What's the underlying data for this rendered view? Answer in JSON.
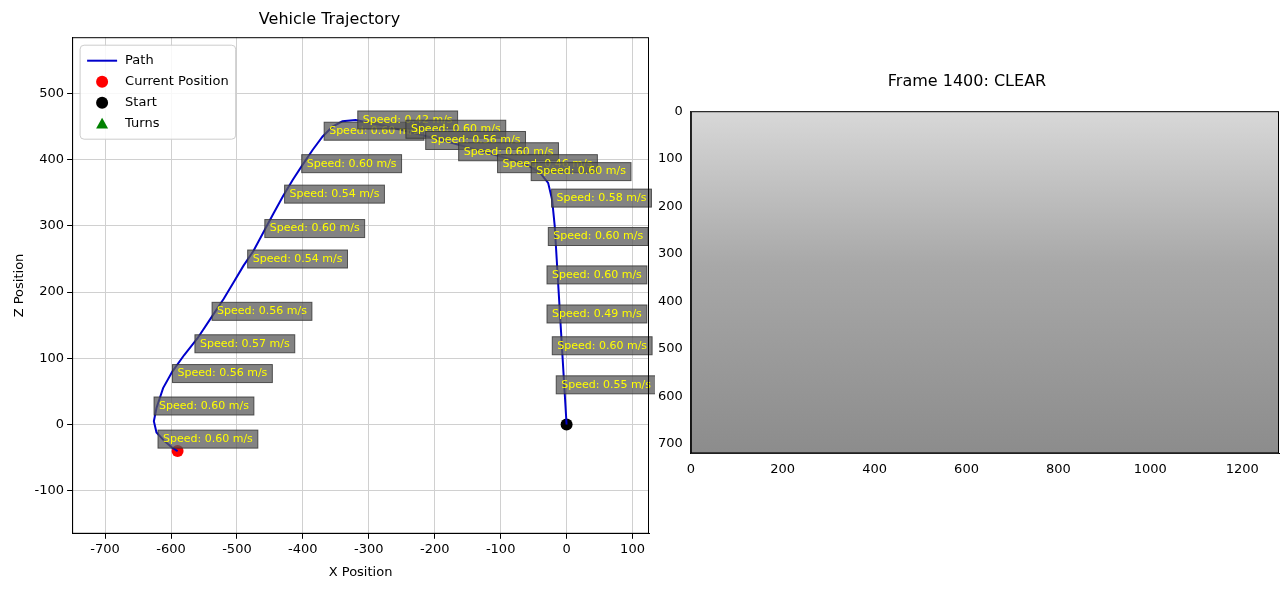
{
  "chart_data": [
    {
      "type": "line",
      "title": "Vehicle Trajectory",
      "x_label": "X Position",
      "y_label": "Z Position",
      "xlim": [
        -750,
        125
      ],
      "ylim": [
        -165,
        585
      ],
      "xticks": [
        -700,
        -600,
        -500,
        -400,
        -300,
        -200,
        -100,
        0,
        100
      ],
      "yticks": [
        -100,
        0,
        100,
        200,
        300,
        400,
        500
      ],
      "grid": true,
      "legend": "upper left",
      "series": [
        {
          "name": "Path",
          "color": "#0000cc",
          "type": "line",
          "line_style": "solid",
          "x": [
            0,
            -3,
            -6,
            -9,
            -12,
            -15,
            -18,
            -22,
            -28,
            -40,
            -60,
            -90,
            -130,
            -180,
            -230,
            -280,
            -320,
            -340,
            -355,
            -370,
            -385,
            -400,
            -415,
            -430,
            -445,
            -460,
            -475,
            -490,
            -505,
            -520,
            -540,
            -560,
            -580,
            -598,
            -612,
            -622,
            -626,
            -622,
            -610,
            -598,
            -590
          ],
          "y": [
            0,
            50,
            100,
            150,
            200,
            250,
            300,
            340,
            365,
            380,
            392,
            402,
            413,
            427,
            440,
            452,
            460,
            458,
            450,
            435,
            415,
            393,
            370,
            345,
            318,
            290,
            262,
            240,
            215,
            190,
            160,
            130,
            105,
            80,
            55,
            25,
            5,
            -12,
            -25,
            -35,
            -40
          ]
        },
        {
          "name": "Current Position",
          "color": "#ff0000",
          "type": "scatter",
          "marker": "o",
          "x": [
            -590
          ],
          "y": [
            -40
          ]
        },
        {
          "name": "Start",
          "color": "#000000",
          "type": "scatter",
          "marker": "o",
          "x": [
            0
          ],
          "y": [
            0
          ]
        },
        {
          "name": "Turns",
          "color": "#008000",
          "type": "scatter",
          "marker": "^",
          "x": [],
          "y": []
        }
      ],
      "annotations": [
        {
          "x": -544,
          "y": -22,
          "text": "Speed: 0.60 m/s"
        },
        {
          "x": -550,
          "y": 28,
          "text": "Speed: 0.60 m/s"
        },
        {
          "x": -522,
          "y": 77,
          "text": "Speed: 0.56 m/s"
        },
        {
          "x": -488,
          "y": 122,
          "text": "Speed: 0.57 m/s"
        },
        {
          "x": -462,
          "y": 171,
          "text": "Speed: 0.56 m/s"
        },
        {
          "x": -408,
          "y": 250,
          "text": "Speed: 0.54 m/s"
        },
        {
          "x": -382,
          "y": 296,
          "text": "Speed: 0.60 m/s"
        },
        {
          "x": -352,
          "y": 348,
          "text": "Speed: 0.54 m/s"
        },
        {
          "x": -326,
          "y": 394,
          "text": "Speed: 0.60 m/s"
        },
        {
          "x": -292,
          "y": 443,
          "text": "Speed: 0.60 m/s"
        },
        {
          "x": -241,
          "y": 460,
          "text": "Speed: 0.42 m/s"
        },
        {
          "x": -168,
          "y": 446,
          "text": "Speed: 0.60 m/s"
        },
        {
          "x": -138,
          "y": 429,
          "text": "Speed: 0.56 m/s"
        },
        {
          "x": -88,
          "y": 412,
          "text": "Speed: 0.60 m/s"
        },
        {
          "x": -29,
          "y": 394,
          "text": "Speed: 0.46 m/s"
        },
        {
          "x": 22,
          "y": 382,
          "text": "Speed: 0.60 m/s"
        },
        {
          "x": 53,
          "y": 342,
          "text": "Speed: 0.58 m/s"
        },
        {
          "x": 48,
          "y": 284,
          "text": "Speed: 0.60 m/s"
        },
        {
          "x": 46,
          "y": 226,
          "text": "Speed: 0.60 m/s"
        },
        {
          "x": 46,
          "y": 167,
          "text": "Speed: 0.49 m/s"
        },
        {
          "x": 54,
          "y": 119,
          "text": "Speed: 0.60 m/s"
        },
        {
          "x": 60,
          "y": 60,
          "text": "Speed: 0.55 m/s"
        }
      ]
    },
    {
      "type": "image",
      "title": "Frame 1400: CLEAR",
      "xlim": [
        0,
        1280
      ],
      "ylim": [
        720,
        0
      ],
      "xticks": [
        0,
        200,
        400,
        600,
        800,
        1000,
        1200
      ],
      "yticks": [
        0,
        100,
        200,
        300,
        400,
        500,
        600,
        700
      ],
      "grid": false
    }
  ]
}
